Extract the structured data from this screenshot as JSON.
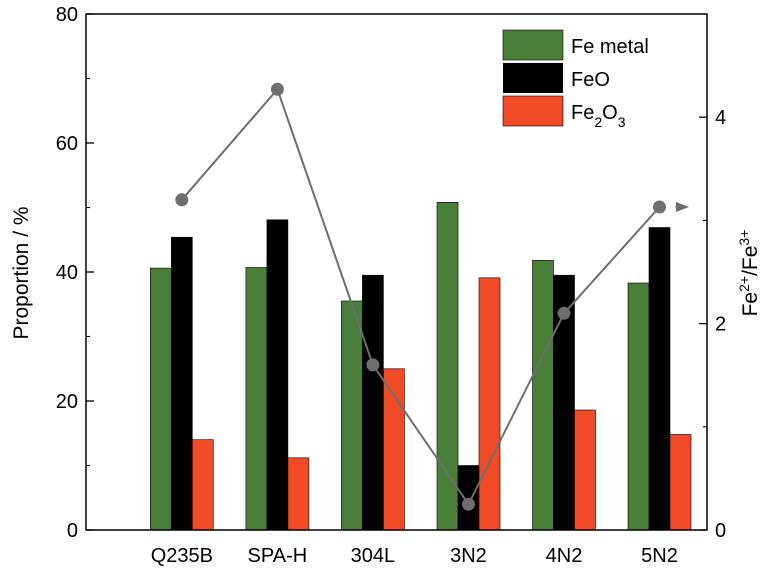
{
  "chart_data": {
    "type": "bar",
    "categories": [
      "Q235B",
      "SPA-H",
      "304L",
      "3N2",
      "4N2",
      "5N2"
    ],
    "series": [
      {
        "name": "Fe metal",
        "color": "#4a7f3a",
        "values": [
          40.6,
          40.7,
          35.5,
          50.8,
          41.8,
          38.3
        ]
      },
      {
        "name": "FeO",
        "color": "#000000",
        "values": [
          45.4,
          48.1,
          39.5,
          10.0,
          39.5,
          46.9
        ]
      },
      {
        "name": "Fe2O3",
        "legend_main": "Fe",
        "legend_sub": "2",
        "legend_main2": "O",
        "legend_sub2": "3",
        "color": "#f04a26",
        "values": [
          14.0,
          11.2,
          25.0,
          39.1,
          18.6,
          14.8
        ]
      }
    ],
    "line_series": {
      "axis": "right",
      "color": "#6e6e6e",
      "values": [
        3.2,
        4.27,
        1.6,
        0.25,
        2.1,
        3.13
      ]
    },
    "ylabel": "Proportion / %",
    "ylim": [
      0,
      80
    ],
    "yticks": [
      "0",
      "20",
      "40",
      "60",
      "80"
    ],
    "y2label": {
      "base1": "Fe",
      "sup1": "2+",
      "slash": "/Fe",
      "sup2": "3+"
    },
    "y2lim": [
      0,
      5
    ],
    "y2ticks": [
      "0",
      "2",
      "4"
    ],
    "legend_position": "top-right",
    "grid": false
  }
}
